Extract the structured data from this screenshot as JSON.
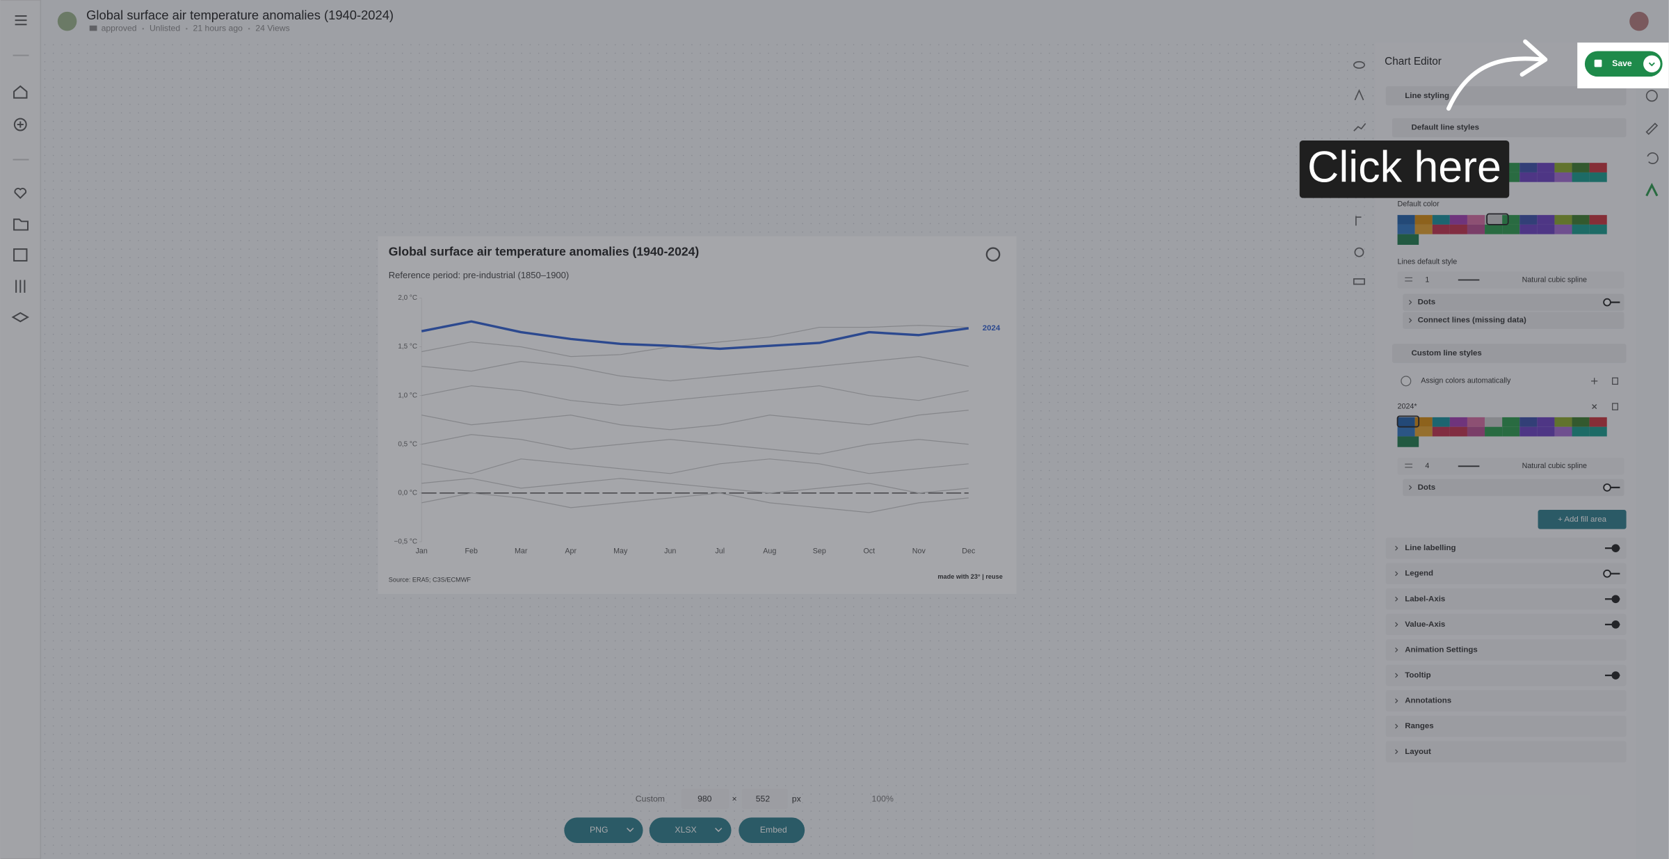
{
  "app_header": {
    "title": "Global surface air temperature anomalies (1940-2024)",
    "meta": [
      "approved",
      "Unlisted",
      "21 hours ago",
      "24 Views"
    ]
  },
  "chart_data": {
    "type": "line",
    "title": "Global surface air temperature anomalies (1940-2024)",
    "subtitle": "Reference period: pre-industrial (1850–1900)",
    "categories": [
      "Jan",
      "Feb",
      "Mar",
      "Apr",
      "May",
      "Jun",
      "Jul",
      "Aug",
      "Sep",
      "Oct",
      "Nov",
      "Dec"
    ],
    "ylim": [
      -0.5,
      2.0
    ],
    "yticks": [
      {
        "value": -0.5,
        "label": "−0,5 °C"
      },
      {
        "value": 0,
        "label": "0,0 °C"
      },
      {
        "value": 0.5,
        "label": "0,5 °C"
      },
      {
        "value": 1,
        "label": "1,0 °C"
      },
      {
        "value": 1.5,
        "label": "1,5 °C"
      },
      {
        "value": 2,
        "label": "2,0 °C"
      }
    ],
    "series": [
      {
        "name": "2024",
        "color": "#2f5fd0",
        "values": [
          1.66,
          1.76,
          1.65,
          1.58,
          1.53,
          1.51,
          1.48,
          1.51,
          1.54,
          1.65,
          1.62,
          1.69
        ]
      }
    ],
    "other_series": [
      {
        "color": "#c9c9c9",
        "values": [
          1.45,
          1.55,
          1.5,
          1.4,
          1.42,
          1.5,
          1.55,
          1.6,
          1.7,
          1.7,
          1.72,
          1.7
        ]
      },
      {
        "color": "#c9c9c9",
        "values": [
          1.3,
          1.25,
          1.35,
          1.3,
          1.2,
          1.15,
          1.2,
          1.25,
          1.3,
          1.35,
          1.4,
          1.3
        ]
      },
      {
        "color": "#c9c9c9",
        "values": [
          1.0,
          1.1,
          1.05,
          0.95,
          0.9,
          0.95,
          1.0,
          1.05,
          1.1,
          1.0,
          0.95,
          1.05
        ]
      },
      {
        "color": "#c9c9c9",
        "values": [
          0.8,
          0.7,
          0.75,
          0.8,
          0.7,
          0.65,
          0.7,
          0.8,
          0.75,
          0.7,
          0.8,
          0.85
        ]
      },
      {
        "color": "#c9c9c9",
        "values": [
          0.5,
          0.6,
          0.55,
          0.45,
          0.5,
          0.55,
          0.5,
          0.45,
          0.4,
          0.5,
          0.55,
          0.5
        ]
      },
      {
        "color": "#c9c9c9",
        "values": [
          0.3,
          0.2,
          0.35,
          0.3,
          0.25,
          0.2,
          0.3,
          0.35,
          0.3,
          0.2,
          0.25,
          0.3
        ]
      },
      {
        "color": "#c9c9c9",
        "values": [
          0.1,
          0.15,
          0.05,
          0.1,
          0.15,
          0.1,
          0.05,
          0.0,
          0.05,
          0.1,
          0.0,
          0.05
        ]
      },
      {
        "color": "#c9c9c9",
        "values": [
          -0.1,
          0.0,
          -0.05,
          -0.15,
          -0.1,
          -0.05,
          0.0,
          -0.1,
          -0.15,
          -0.2,
          -0.1,
          -0.05
        ]
      }
    ],
    "source": "Source: ERA5; C3S/ECMWF",
    "credit": "made with 23° | reuse"
  },
  "editor": {
    "title": "Chart Editor",
    "line_styling": "Line styling",
    "default_line_styles": "Default line styles",
    "default_color": "Default color",
    "lines_default_style": "Lines default style",
    "default_width": "1",
    "default_curve": "Natural cubic spline",
    "dots": "Dots",
    "connect_lines": "Connect lines (missing data)",
    "custom_line_styles": "Custom line styles",
    "assign_colors": "Assign colors automatically",
    "custom_line": "2024*",
    "custom_width": "4",
    "custom_curve": "Natural cubic spline",
    "custom_dots": "Dots",
    "add_fill_area": "+ Add fill area",
    "sections": [
      "Line labelling",
      "Legend",
      "Label-Axis",
      "Value-Axis",
      "Animation Settings",
      "Tooltip",
      "Annotations",
      "Ranges",
      "Layout"
    ]
  },
  "toolbar": {
    "preset": "Custom",
    "width": 980,
    "times": "×",
    "height": 552,
    "unit": "px",
    "zoom": "100%",
    "buttons": [
      "PNG",
      "XLSX",
      "Embed"
    ]
  },
  "callout": "Click here",
  "save_button": "Save"
}
